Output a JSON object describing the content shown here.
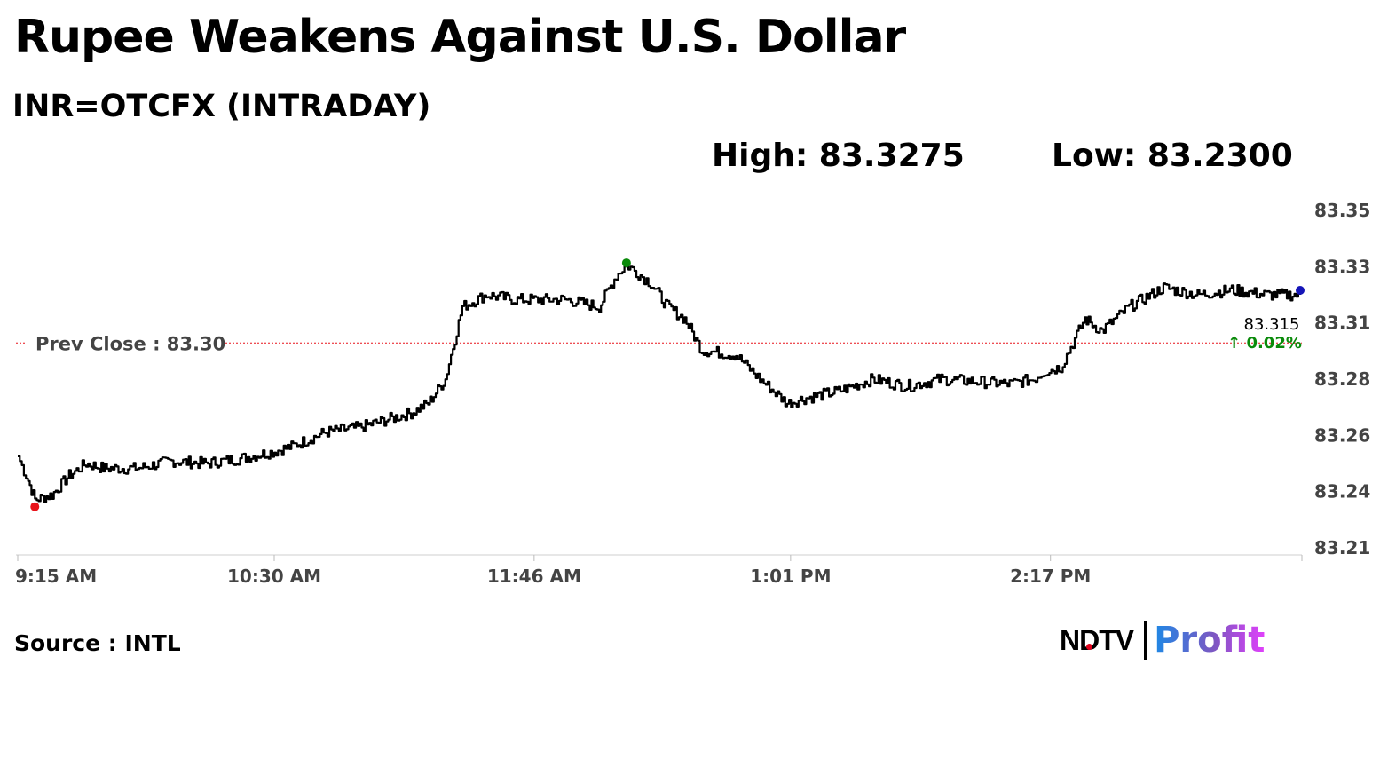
{
  "title": "Rupee Weakens Against U.S. Dollar",
  "subtitle": "INR=OTCFX (INTRADAY)",
  "high_label": "High: 83.3275",
  "low_label": "Low: 83.2300",
  "source": "Source : INTL",
  "logo": {
    "brand": "NDTV",
    "product": "Profit"
  },
  "chart_data": {
    "type": "line",
    "x_ticks": [
      "9:15 AM",
      "10:30 AM",
      "11:46 AM",
      "1:01 PM",
      "2:17 PM"
    ],
    "y_ticks": [
      "83.35",
      "83.33",
      "83.31",
      "83.28",
      "83.26",
      "83.24",
      "83.21"
    ],
    "ylim": [
      83.21,
      83.35
    ],
    "prev_close": {
      "label": "Prev Close : 83.30",
      "value": 83.295
    },
    "last": {
      "value_label": "83.315",
      "change_label": "↑ 0.02%"
    },
    "markers": {
      "low_color": "#e8141b",
      "high_color": "#0a8a0a",
      "last_color": "#1515b8"
    },
    "series": [
      {
        "x": [
          "9:15 AM",
          "9:18 AM",
          "9:20 AM",
          "9:25 AM",
          "9:30 AM",
          "9:35 AM",
          "9:40 AM",
          "9:50 AM",
          "10:00 AM",
          "10:10 AM",
          "10:20 AM",
          "10:30 AM",
          "10:35 AM",
          "10:45 AM",
          "10:55 AM",
          "11:00 AM",
          "11:10 AM",
          "11:15 AM",
          "11:20 AM",
          "11:25 AM",
          "11:32 AM",
          "11:40 AM",
          "11:46 AM",
          "11:55 AM",
          "12:05 PM",
          "12:10 PM",
          "12:13 PM",
          "12:20 PM",
          "12:25 PM",
          "12:30 PM",
          "12:35 PM",
          "12:45 PM",
          "12:52 PM",
          "1:00 PM",
          "1:05 PM",
          "1:15 PM",
          "1:25 PM",
          "1:35 PM",
          "1:45 PM",
          "1:55 PM",
          "2:05 PM",
          "2:12 PM",
          "2:15 PM",
          "2:20 PM",
          "2:27 PM",
          "2:32 PM",
          "2:40 PM",
          "2:50 PM",
          "3:00 PM",
          "3:10 PM",
          "3:20 PM",
          "3:30 PM"
        ],
        "y": [
          83.248,
          83.238,
          83.23,
          83.232,
          83.24,
          83.245,
          83.243,
          83.243,
          83.246,
          83.245,
          83.247,
          83.25,
          83.252,
          83.258,
          83.26,
          83.262,
          83.266,
          83.27,
          83.28,
          83.31,
          83.315,
          83.313,
          83.313,
          83.313,
          83.31,
          83.323,
          83.3275,
          83.32,
          83.31,
          83.305,
          83.292,
          83.29,
          83.28,
          83.27,
          83.272,
          83.275,
          83.28,
          83.277,
          83.28,
          83.279,
          83.278,
          83.28,
          83.283,
          83.285,
          83.305,
          83.3,
          83.31,
          83.318,
          83.315,
          83.317,
          83.315,
          83.315
        ]
      }
    ]
  }
}
